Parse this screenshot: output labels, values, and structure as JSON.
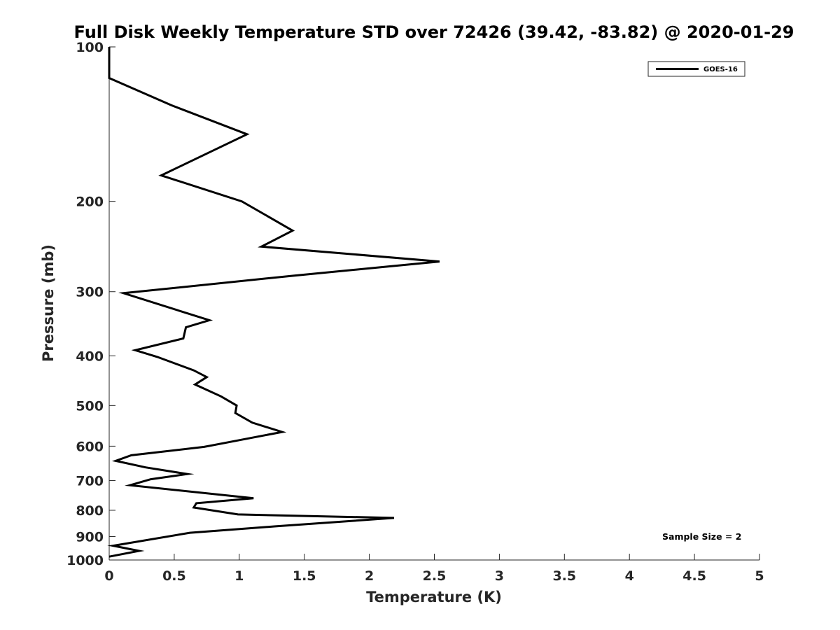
{
  "chart_data": {
    "type": "line",
    "title": "Full Disk Weekly Temperature STD over 72426 (39.42, -83.82) @ 2020-01-29",
    "xlabel": "Temperature (K)",
    "ylabel": "Pressure (mb)",
    "xlim": [
      0,
      5
    ],
    "ylim": [
      100,
      1000
    ],
    "y_scale": "log",
    "y_reversed": true,
    "grid": false,
    "legend_position": "top-right",
    "xticks": [
      0,
      0.5,
      1,
      1.5,
      2,
      2.5,
      3,
      3.5,
      4,
      4.5,
      5
    ],
    "xtick_labels": [
      "0",
      "0.5",
      "1",
      "1.5",
      "2",
      "2.5",
      "3",
      "3.5",
      "4",
      "4.5",
      "5"
    ],
    "yticks": [
      100,
      200,
      300,
      400,
      500,
      600,
      700,
      800,
      900,
      1000
    ],
    "ytick_labels": [
      "100",
      "200",
      "300",
      "400",
      "500",
      "600",
      "700",
      "800",
      "900",
      "1000"
    ],
    "line_color": "#000000",
    "series": [
      {
        "name": "GOES-16",
        "x": [
          0,
          0,
          0.48,
          1.06,
          0.4,
          1.02,
          1.41,
          1.17,
          2.54,
          1.43,
          0.11,
          0.77,
          0.59,
          0.57,
          0.2,
          0.37,
          0.65,
          0.75,
          0.66,
          0.86,
          0.98,
          0.97,
          1.1,
          1.33,
          1.0,
          0.73,
          0.17,
          0.05,
          0.28,
          0.6,
          0.32,
          0.16,
          1.11,
          0.67,
          0.65,
          0.99,
          2.19,
          1.27,
          0.62,
          0.03,
          0.23,
          0
        ],
        "y": [
          100,
          115,
          130,
          148,
          178,
          200,
          228,
          245,
          262,
          279,
          302,
          341,
          352,
          370,
          390,
          402,
          427,
          440,
          455,
          480,
          500,
          517,
          540,
          563,
          584,
          602,
          625,
          641,
          660,
          680,
          696,
          715,
          758,
          775,
          790,
          815,
          828,
          860,
          885,
          938,
          960,
          985
        ]
      }
    ],
    "annotation": "Sample Size = 2"
  }
}
